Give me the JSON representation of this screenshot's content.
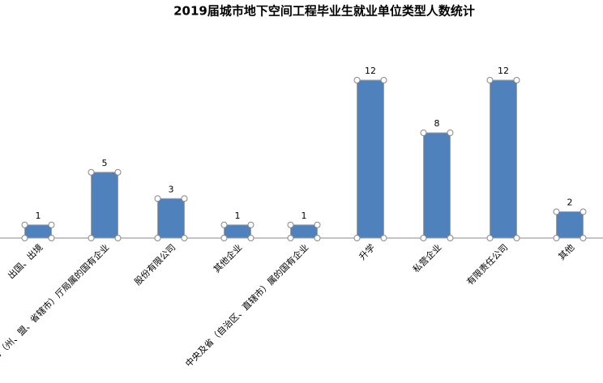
{
  "chart_data": {
    "type": "bar",
    "title": "2019届城市地下空间工程毕业生就业单位类型人数统计",
    "categories": [
      "出国、出境",
      "地市（州、盟、省辖市）厅局属的国有企业",
      "股份有限公司",
      "其他企业",
      "中央及省（自治区、直辖市）属的国有企业",
      "升学",
      "私营企业",
      "有限责任公司",
      "其他"
    ],
    "values": [
      1,
      5,
      3,
      1,
      1,
      12,
      8,
      12,
      2
    ],
    "color": "#4f81bd"
  }
}
